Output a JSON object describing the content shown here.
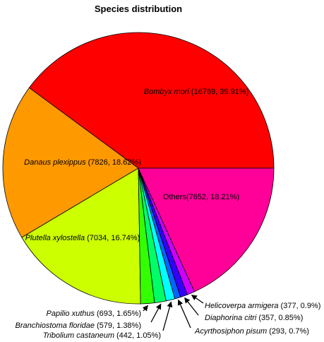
{
  "chart_data": {
    "type": "pie",
    "title": "Species distribution",
    "categories": [
      "Bombyx mori",
      "Danaus plexippus",
      "Plutella xylostella",
      "Papilio xuthus",
      "Branchiostoma floridae",
      "Tribolium castaneum",
      "Acyrthosiphon pisum",
      "Diaphorina citri",
      "Helicoverpa armigera",
      "Others"
    ],
    "values": [
      39.91,
      18.62,
      16.74,
      1.65,
      1.38,
      1.05,
      0.7,
      0.85,
      0.9,
      18.21
    ],
    "value_labels": [
      "(16769, 39.91%)",
      "(7826, 18.62%)",
      "(7034, 16.74%)",
      "(693, 1.65%)",
      "(579, 1.38%)",
      "(442, 1.05%)",
      "(293, 0.7%)",
      "(357, 0.85%)",
      "(377,  0.9%)",
      "(7652, 18.21%)"
    ],
    "italic": [
      true,
      true,
      true,
      true,
      true,
      true,
      true,
      true,
      true,
      false
    ],
    "colors": [
      "#ff0000",
      "#ff9900",
      "#ccff00",
      "#33ff00",
      "#00ff66",
      "#00ffff",
      "#0066ff",
      "#3300ff",
      "#cc00ff",
      "#ff0099"
    ]
  }
}
